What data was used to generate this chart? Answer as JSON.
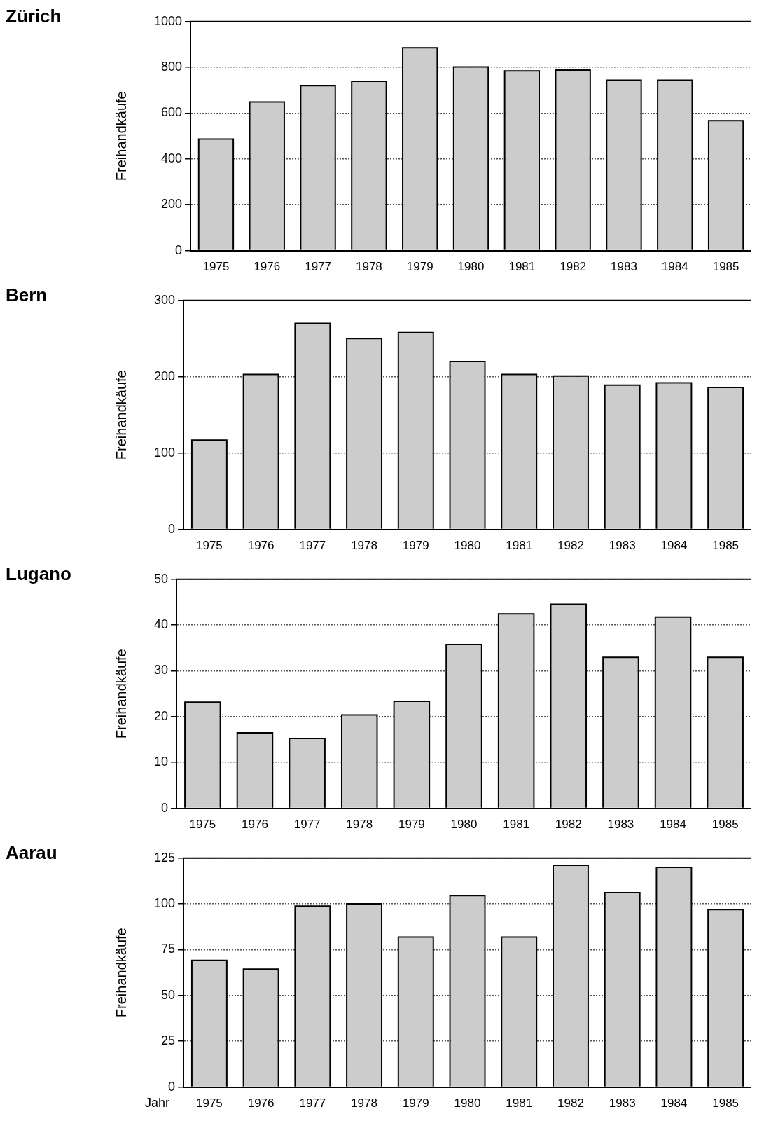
{
  "chart_data": [
    {
      "type": "bar",
      "title": "Zürich",
      "ylabel": "Freihandkäufe",
      "categories": [
        "1975",
        "1976",
        "1977",
        "1978",
        "1979",
        "1980",
        "1981",
        "1982",
        "1983",
        "1984",
        "1985"
      ],
      "values": [
        484,
        646,
        717,
        736,
        882,
        799,
        781,
        785,
        741,
        741,
        564
      ],
      "color": "#cccccc",
      "ylim": [
        0,
        1000
      ],
      "yticks": [
        0,
        200,
        400,
        600,
        800,
        {
          "value": 1000,
          "label": "1000"
        }
      ],
      "grid": "y"
    },
    {
      "type": "bar",
      "title": "Bern",
      "ylabel": "Freihandkäufe",
      "categories": [
        "1975",
        "1976",
        "1977",
        "1978",
        "1979",
        "1980",
        "1981",
        "1982",
        "1983",
        "1984",
        "1985"
      ],
      "values": [
        116,
        202,
        269,
        249,
        257,
        219,
        202,
        200,
        188,
        191,
        185
      ],
      "color": "#cccccc",
      "ylim": [
        0,
        300
      ],
      "yticks": [
        0,
        100,
        200,
        300
      ],
      "grid": "y"
    },
    {
      "type": "bar",
      "title": "Lugano",
      "ylabel": "Freihandkäufe",
      "categories": [
        "1975",
        "1976",
        "1977",
        "1978",
        "1979",
        "1980",
        "1981",
        "1982",
        "1983",
        "1984",
        "1985"
      ],
      "values": [
        23,
        16.3,
        15.1,
        20.2,
        23.2,
        35.6,
        42.3,
        44.4,
        32.8,
        41.6,
        32.8
      ],
      "color": "#cccccc",
      "ylim": [
        0,
        50
      ],
      "yticks": [
        0,
        10,
        20,
        30,
        40,
        50
      ],
      "grid": "y"
    },
    {
      "type": "bar",
      "title": "Aarau",
      "ylabel": "Freihandkäufe",
      "xlabel": "Jahr",
      "categories": [
        "1975",
        "1976",
        "1977",
        "1978",
        "1979",
        "1980",
        "1981",
        "1982",
        "1983",
        "1984",
        "1985"
      ],
      "values": [
        68.8,
        64,
        98.4,
        99.7,
        81.5,
        104.2,
        81.5,
        120.7,
        105.8,
        119.6,
        96.5
      ],
      "color": "#cccccc",
      "ylim": [
        0,
        125
      ],
      "yticks": [
        0,
        25,
        50,
        75,
        100,
        125
      ],
      "grid": "y"
    }
  ]
}
